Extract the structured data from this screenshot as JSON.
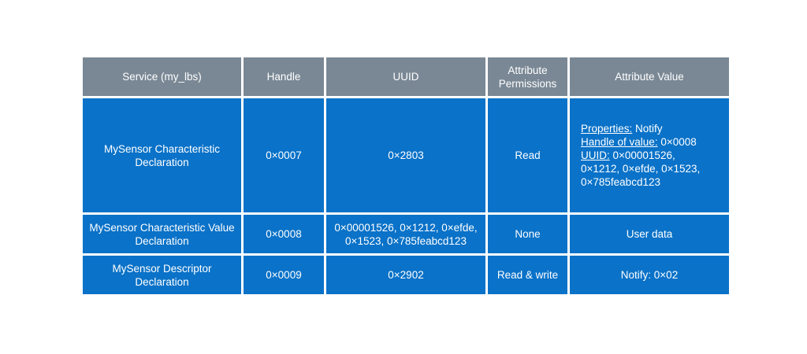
{
  "headers": [
    "Service (my_lbs)",
    "Handle",
    "UUID",
    "Attribute Permissions",
    "Attribute Value"
  ],
  "rows": [
    {
      "service": "MySensor Characteristic Declaration",
      "handle": "0×0007",
      "uuid": "0×2803",
      "permissions": "Read",
      "value": {
        "properties_label": "Properties:",
        "properties_value": " Notify",
        "handle_label": "Handle of value:",
        "handle_value": " 0×0008",
        "uuid_label": "UUID:",
        "uuid_value_1": " 0×00001526,",
        "uuid_value_2": "0×1212, 0×efde, 0×1523,",
        "uuid_value_3": "0×785feabcd123"
      }
    },
    {
      "service": "MySensor Characteristic Value Declaration",
      "handle": "0×0008",
      "uuid": "0×00001526, 0×1212, 0×efde, 0×1523, 0×785feabcd123",
      "permissions": "None",
      "value": "User data"
    },
    {
      "service": "MySensor Descriptor Declaration",
      "handle": "0×0009",
      "uuid": "0×2902",
      "permissions": "Read & write",
      "value": "Notify: 0×02"
    }
  ]
}
